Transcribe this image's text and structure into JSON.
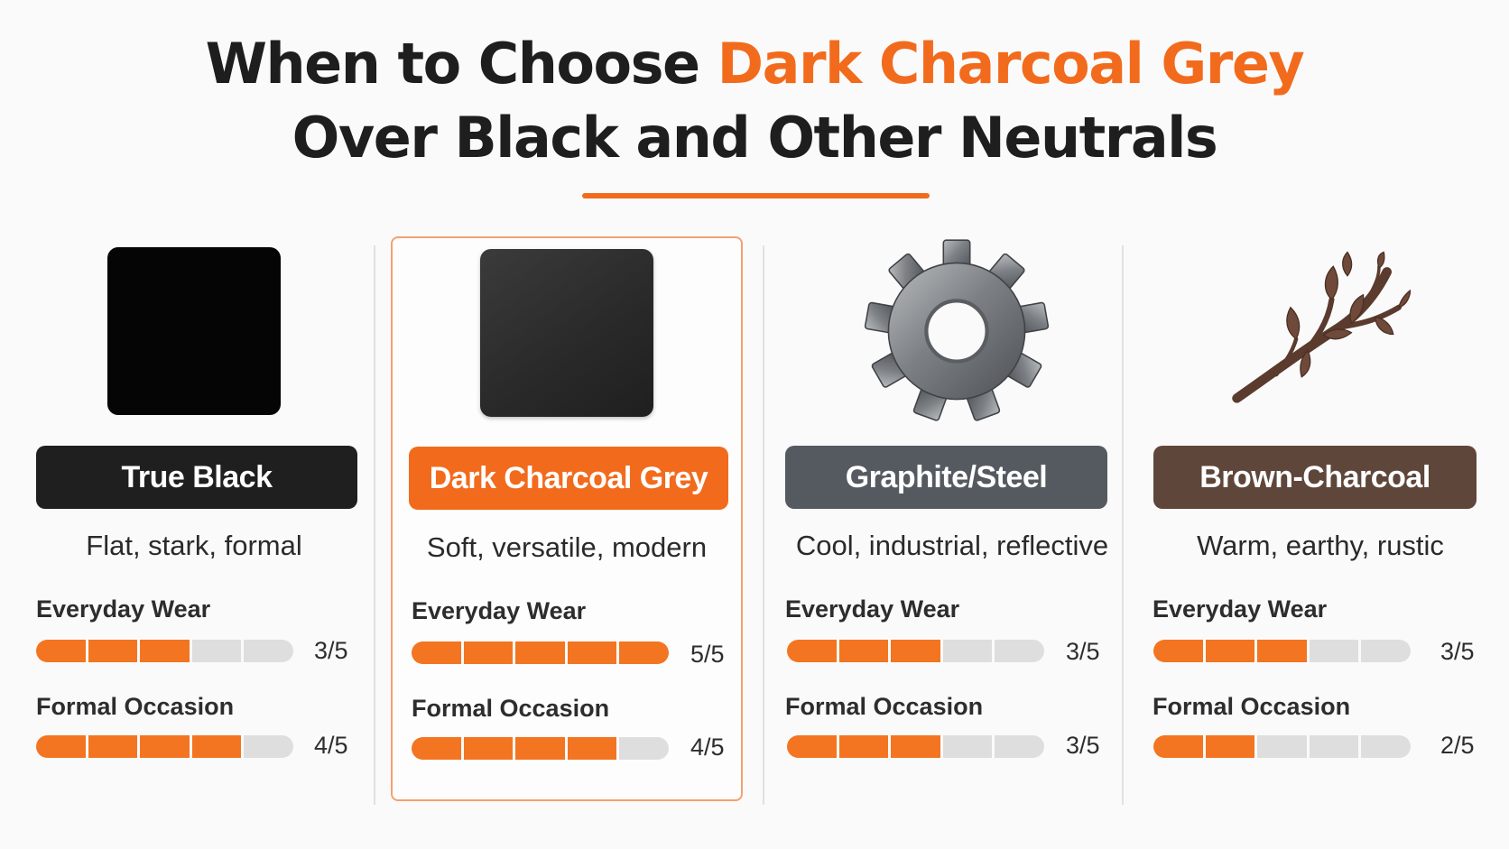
{
  "header": {
    "title_part1": "When to Choose ",
    "title_accent": "Dark Charcoal Grey",
    "title_part2": "Over Black and Other Neutrals"
  },
  "colors": {
    "accent": "#f26b1d",
    "bar_filled": "#f37521",
    "bar_empty": "#dedede"
  },
  "options": [
    {
      "name": "True Black",
      "visual": "black-square-swatch",
      "pill_color": "#1f1f1f",
      "description": "Flat, stark, formal",
      "ratings": [
        {
          "label": "Everyday Wear",
          "score": 3,
          "max": 5,
          "text": "3/5"
        },
        {
          "label": "Formal Occasion",
          "score": 4,
          "max": 5,
          "text": "4/5"
        }
      ]
    },
    {
      "name": "Dark Charcoal Grey",
      "visual": "charcoal-square-swatch",
      "pill_color": "#f26b1d",
      "description": "Soft, versatile, modern",
      "ratings": [
        {
          "label": "Everyday Wear",
          "score": 5,
          "max": 5,
          "text": "5/5"
        },
        {
          "label": "Formal Occasion",
          "score": 4,
          "max": 5,
          "text": "4/5"
        }
      ]
    },
    {
      "name": "Graphite/Steel",
      "visual": "steel-gear-icon",
      "pill_color": "#555a61",
      "description": "Cool, industrial, reflective",
      "ratings": [
        {
          "label": "Everyday Wear",
          "score": 3,
          "max": 5,
          "text": "3/5"
        },
        {
          "label": "Formal Occasion",
          "score": 3,
          "max": 5,
          "text": "3/5"
        }
      ]
    },
    {
      "name": "Brown-Charcoal",
      "visual": "branch-icon",
      "pill_color": "#5f463b",
      "description": "Warm, earthy, rustic",
      "ratings": [
        {
          "label": "Everyday Wear",
          "score": 3,
          "max": 5,
          "text": "3/5"
        },
        {
          "label": "Formal Occasion",
          "score": 2,
          "max": 5,
          "text": "2/5"
        }
      ]
    }
  ]
}
